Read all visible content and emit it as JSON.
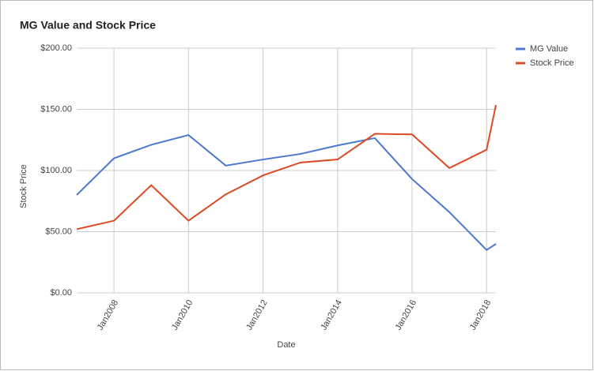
{
  "chart_data": {
    "type": "line",
    "title": "MG Value and Stock Price",
    "x": [
      "2007-01",
      "2008-01",
      "2009-01",
      "2010-01",
      "2011-01",
      "2012-01",
      "2013-01",
      "2014-01",
      "2015-01",
      "2016-01",
      "2017-01",
      "2018-01",
      "2018-04"
    ],
    "series": [
      {
        "name": "MG Value",
        "color": "#4a78d0",
        "values": [
          80,
          110,
          121,
          129,
          104,
          109,
          113.5,
          120.5,
          126.5,
          93,
          66,
          35,
          40
        ]
      },
      {
        "name": "Stock Price",
        "color": "#dc4a26",
        "values": [
          52,
          59,
          88,
          59,
          80.5,
          96,
          106.5,
          109,
          130,
          129.5,
          102,
          117,
          153.5
        ]
      }
    ],
    "xlim": [
      "2007-01",
      "2018-04"
    ],
    "xticks": [
      {
        "value": "2008-01",
        "label": "Jan2008"
      },
      {
        "value": "2010-01",
        "label": "Jan2010"
      },
      {
        "value": "2012-01",
        "label": "Jan2012"
      },
      {
        "value": "2014-01",
        "label": "Jan2014"
      },
      {
        "value": "2016-01",
        "label": "Jan2016"
      },
      {
        "value": "2018-01",
        "label": "Jan2018"
      }
    ],
    "ylim": [
      0,
      200
    ],
    "yticks": [
      {
        "value": 0,
        "label": "$0.00"
      },
      {
        "value": 50,
        "label": "$50.00"
      },
      {
        "value": 100,
        "label": "$100.00"
      },
      {
        "value": 150,
        "label": "$150.00"
      },
      {
        "value": 200,
        "label": "$200.00"
      }
    ],
    "xlabel": "Date",
    "ylabel": "Stock Price",
    "grid": true,
    "legend": "right"
  }
}
